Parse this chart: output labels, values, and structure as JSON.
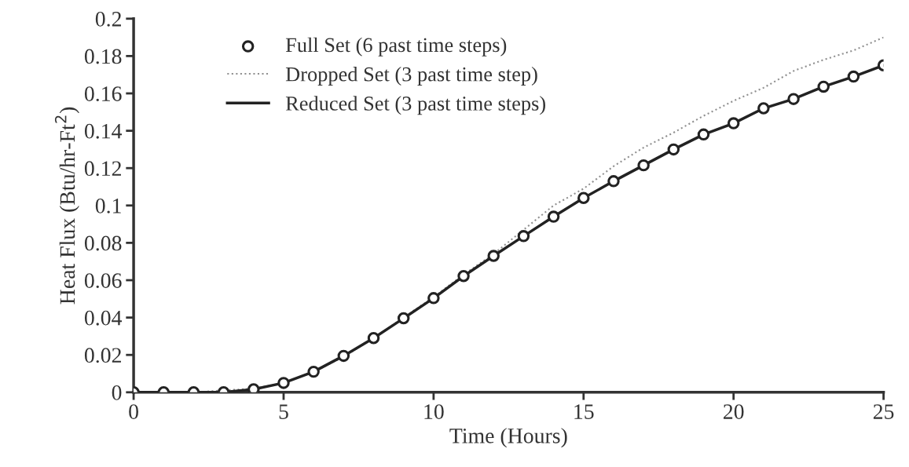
{
  "chart_data": {
    "type": "line",
    "xlabel": "Time (Hours)",
    "ylabel": "Heat Flux (Btu/hr-Ft$^{2}$)",
    "x": [
      0,
      1,
      2,
      3,
      4,
      5,
      6,
      7,
      8,
      9,
      10,
      11,
      12,
      13,
      14,
      15,
      16,
      17,
      18,
      19,
      20,
      21,
      22,
      23,
      24,
      25
    ],
    "xlim": [
      0,
      25
    ],
    "xticks": [
      0,
      5,
      10,
      15,
      20,
      25
    ],
    "ylim": [
      0,
      0.2
    ],
    "yticks": [
      0,
      0.02,
      0.04,
      0.06,
      0.08,
      0.1,
      0.12,
      0.14,
      0.16,
      0.18,
      0.2
    ],
    "grid": false,
    "legend": "top left",
    "series": [
      {
        "name": "Full Set (6 past time steps)",
        "type": "scatter",
        "color": "#222222",
        "marker": "circle",
        "values": [
          0,
          0,
          0,
          0,
          0.0016,
          0.005,
          0.011,
          0.0195,
          0.029,
          0.0396,
          0.0504,
          0.0622,
          0.073,
          0.0836,
          0.094,
          0.104,
          0.113,
          0.1215,
          0.13,
          0.138,
          0.144,
          0.152,
          0.157,
          0.1636,
          0.169,
          0.175
        ]
      },
      {
        "name": "Dropped Set (3 past time step)",
        "color": "#909090",
        "line_style": "dotted",
        "values": [
          0,
          0,
          0,
          0.001,
          0.002,
          0.005,
          0.011,
          0.019,
          0.029,
          0.04,
          0.051,
          0.063,
          0.074,
          0.087,
          0.1,
          0.109,
          0.121,
          0.131,
          0.139,
          0.148,
          0.156,
          0.163,
          0.172,
          0.178,
          0.183,
          0.19
        ]
      },
      {
        "name": "Reduced Set (3 past time steps)",
        "color": "#222222",
        "line_style": "solid",
        "values": [
          0,
          0,
          0,
          0,
          0.0016,
          0.005,
          0.011,
          0.0195,
          0.029,
          0.0396,
          0.0504,
          0.0622,
          0.073,
          0.0836,
          0.094,
          0.104,
          0.113,
          0.1215,
          0.13,
          0.138,
          0.144,
          0.152,
          0.157,
          0.1636,
          0.169,
          0.175
        ]
      }
    ]
  }
}
